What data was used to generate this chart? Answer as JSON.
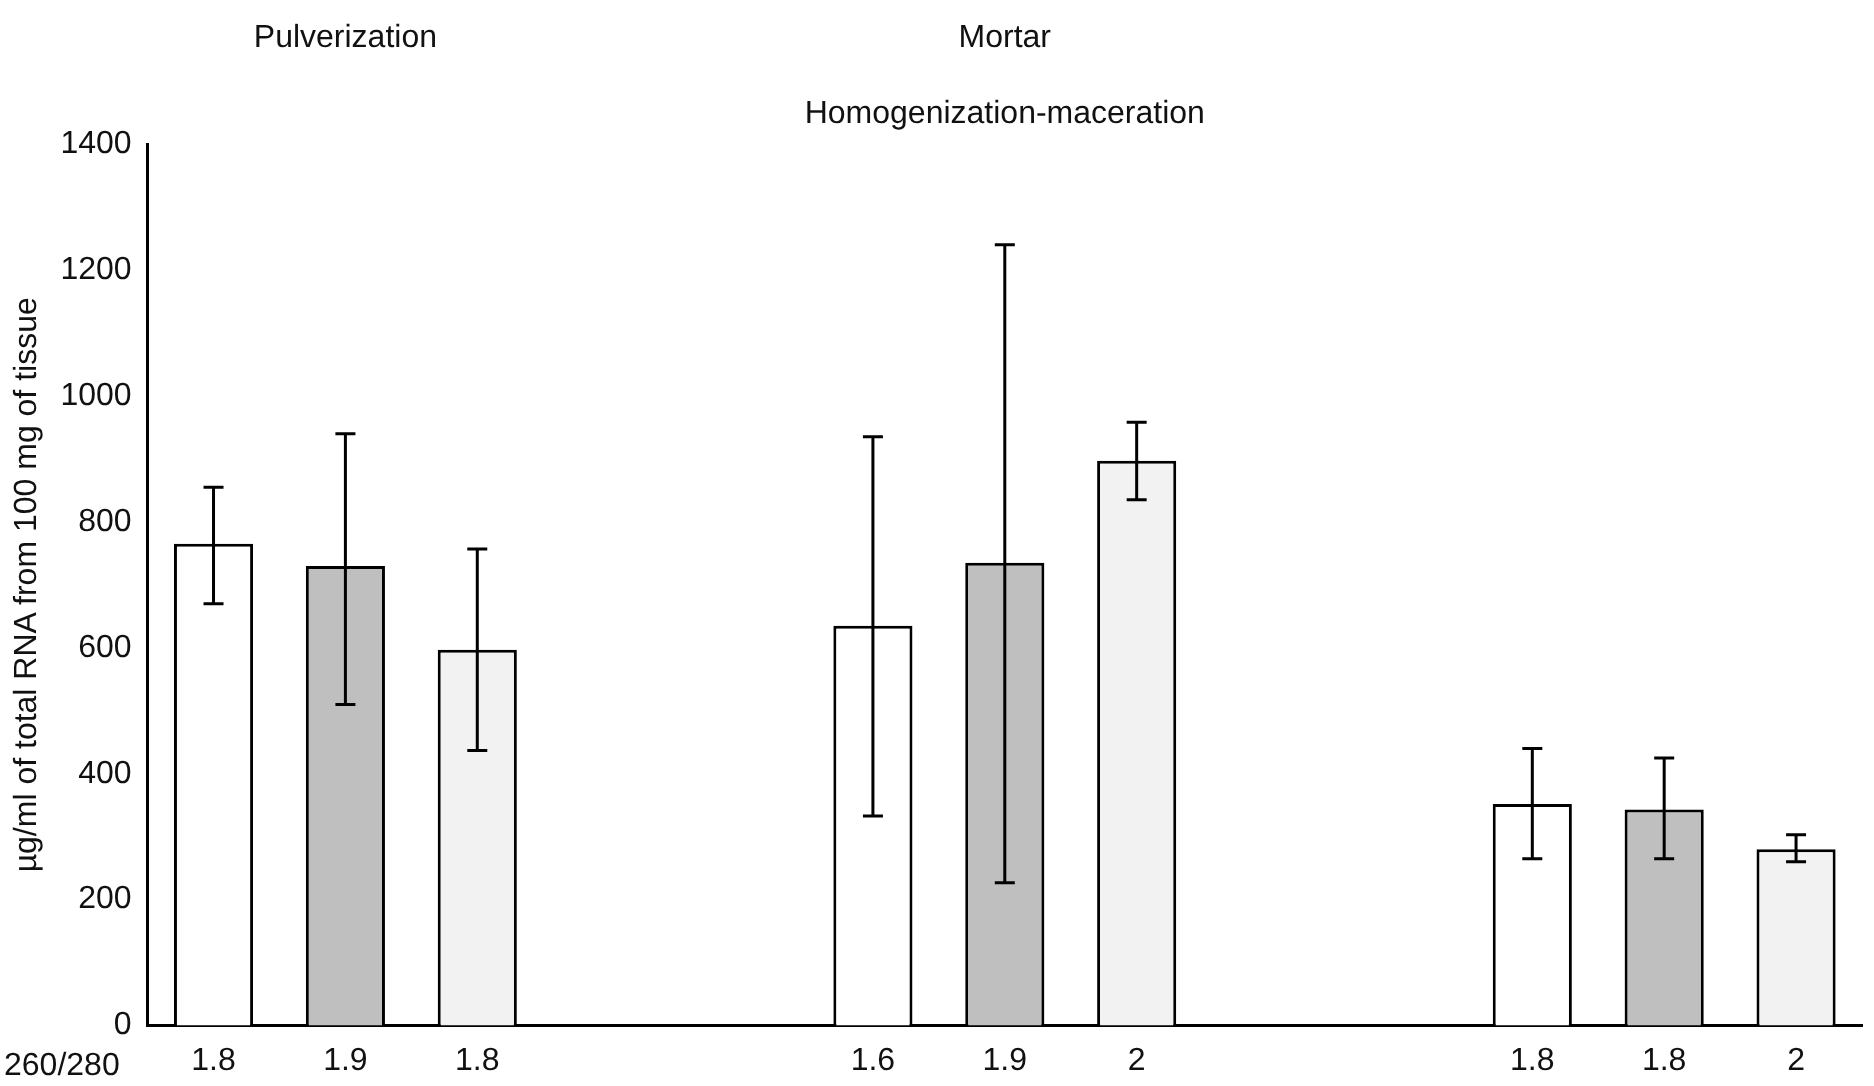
{
  "chart_data": {
    "type": "bar",
    "title": "Homogenization-maceration",
    "ylabel": "µg/ml of total RNA from 100 mg of tissue",
    "annotations": [
      "Pulverization",
      "Mortar",
      "260/280"
    ],
    "categories": [
      "1.8",
      "1.9",
      "1.8",
      null,
      null,
      "1.6",
      "1.9",
      "2",
      null,
      null,
      "1.8",
      "1.8",
      "2"
    ],
    "values": [
      765,
      730,
      597,
      null,
      null,
      635,
      735,
      897,
      null,
      null,
      352,
      343,
      280
    ],
    "colors": [
      "#ffffff",
      "#bfbfbf",
      "#f2f2f2",
      null,
      null,
      "#ffffff",
      "#bfbfbf",
      "#f2f2f2",
      null,
      null,
      "#ffffff",
      "#bfbfbf",
      "#f2f2f2"
    ],
    "errors": [
      [
        670,
        855
      ],
      [
        510,
        940
      ],
      [
        437,
        757
      ],
      null,
      null,
      [
        333,
        935
      ],
      [
        227,
        1240
      ],
      [
        835,
        958
      ],
      null,
      null,
      [
        265,
        440
      ],
      [
        265,
        425
      ],
      [
        260,
        303
      ]
    ],
    "ylim": [
      0,
      1400
    ],
    "yticks": [
      0,
      200,
      400,
      600,
      800,
      1000,
      1200,
      1400
    ],
    "grid": false,
    "legend": false
  }
}
